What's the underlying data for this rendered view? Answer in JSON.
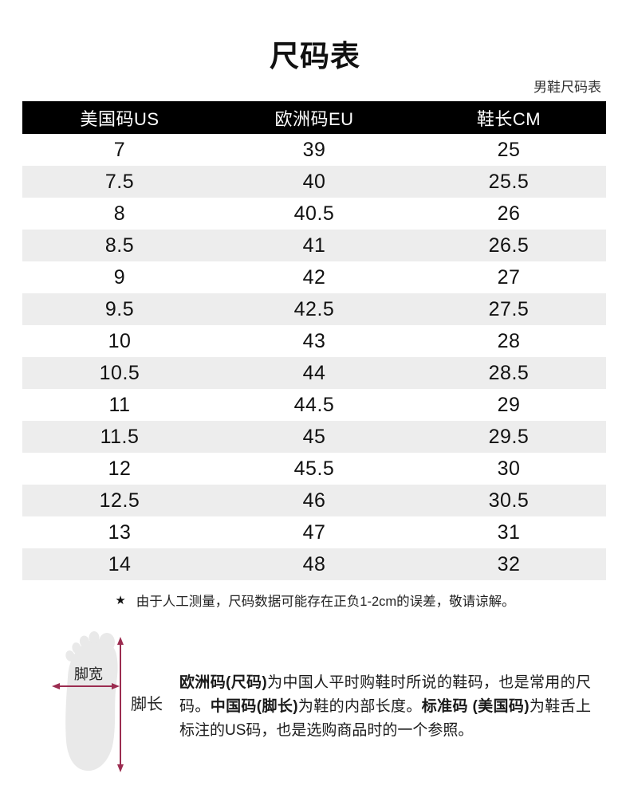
{
  "page": {
    "title": "尺码表",
    "subtitle": "男鞋尺码表"
  },
  "table": {
    "headers": [
      "美国码US",
      "欧洲码EU",
      "鞋长CM"
    ],
    "rows": [
      [
        "7",
        "39",
        "25"
      ],
      [
        "7.5",
        "40",
        "25.5"
      ],
      [
        "8",
        "40.5",
        "26"
      ],
      [
        "8.5",
        "41",
        "26.5"
      ],
      [
        "9",
        "42",
        "27"
      ],
      [
        "9.5",
        "42.5",
        "27.5"
      ],
      [
        "10",
        "43",
        "28"
      ],
      [
        "10.5",
        "44",
        "28.5"
      ],
      [
        "11",
        "44.5",
        "29"
      ],
      [
        "11.5",
        "45",
        "29.5"
      ],
      [
        "12",
        "45.5",
        "30"
      ],
      [
        "12.5",
        "46",
        "30.5"
      ],
      [
        "13",
        "47",
        "31"
      ],
      [
        "14",
        "48",
        "32"
      ]
    ]
  },
  "note": {
    "star": "★",
    "text": "由于人工测量，尺码数据可能存在正负1-2cm的误差，敬请谅解。"
  },
  "foot_diagram": {
    "width_label": "脚宽",
    "length_label": "脚长",
    "arrow_color": "#9b2c50",
    "foot_color": "#e9e9e9"
  },
  "footer": {
    "segments": [
      {
        "text": "欧洲码(尺码)",
        "bold": true
      },
      {
        "text": "为中国人平时购鞋时所说的鞋码，也是常用的尺码。",
        "bold": false
      },
      {
        "text": "中国码(脚长)",
        "bold": true
      },
      {
        "text": "为鞋的内部长度。",
        "bold": false
      },
      {
        "text": "标准码 (美国码)",
        "bold": true
      },
      {
        "text": "为鞋舌上标注的US码，也是选购商品时的一个参照。",
        "bold": false
      }
    ]
  },
  "colors": {
    "header_bg": "#000000",
    "header_text": "#ffffff",
    "alt_row_bg": "#ededed",
    "accent_arrow": "#9b2c50"
  }
}
